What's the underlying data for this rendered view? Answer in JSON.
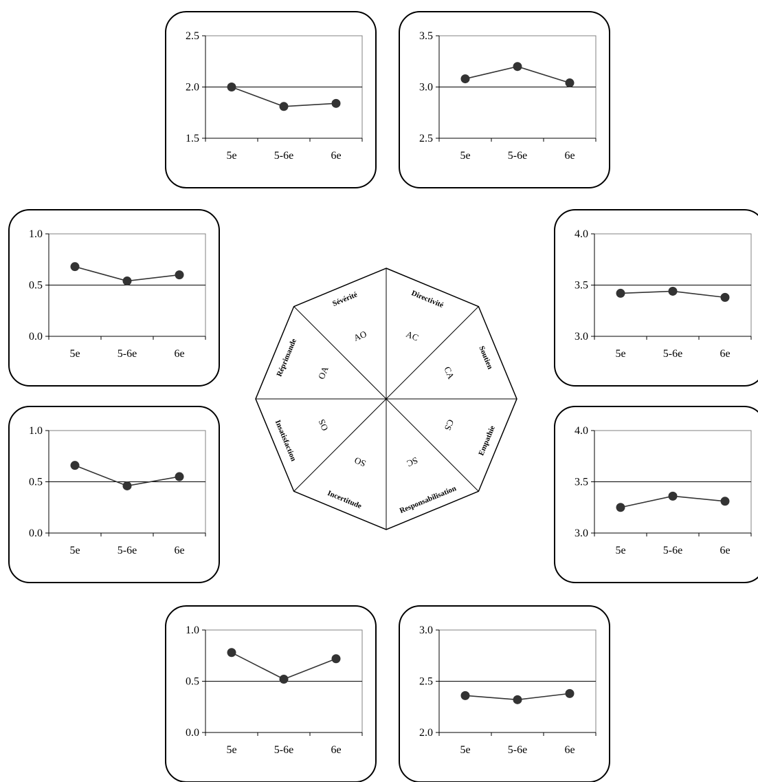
{
  "chart_data": [
    {
      "id": "severite",
      "type": "line",
      "categories": [
        "5e",
        "5-6e",
        "6e"
      ],
      "values": [
        2.0,
        1.81,
        1.84
      ],
      "ylim": [
        1.5,
        2.5
      ],
      "yticks": [
        "1.5",
        "2.0",
        "2.5"
      ],
      "yvals": [
        1.5,
        2.0,
        2.5
      ]
    },
    {
      "id": "directivite",
      "type": "line",
      "categories": [
        "5e",
        "5-6e",
        "6e"
      ],
      "values": [
        3.08,
        3.2,
        3.04
      ],
      "ylim": [
        2.5,
        3.5
      ],
      "yticks": [
        "2.5",
        "3.0",
        "3.5"
      ],
      "yvals": [
        2.5,
        3.0,
        3.5
      ]
    },
    {
      "id": "reprimande",
      "type": "line",
      "categories": [
        "5e",
        "5-6e",
        "6e"
      ],
      "values": [
        0.68,
        0.54,
        0.6
      ],
      "ylim": [
        0.0,
        1.0
      ],
      "yticks": [
        "0.0",
        "0.5",
        "1.0"
      ],
      "yvals": [
        0.0,
        0.5,
        1.0
      ]
    },
    {
      "id": "soutien",
      "type": "line",
      "categories": [
        "5e",
        "5-6e",
        "6e"
      ],
      "values": [
        3.42,
        3.44,
        3.38
      ],
      "ylim": [
        3.0,
        4.0
      ],
      "yticks": [
        "3.0",
        "3.5",
        "4.0"
      ],
      "yvals": [
        3.0,
        3.5,
        4.0
      ]
    },
    {
      "id": "insatisfaction",
      "type": "line",
      "categories": [
        "5e",
        "5-6e",
        "6e"
      ],
      "values": [
        0.66,
        0.46,
        0.55
      ],
      "ylim": [
        0.0,
        1.0
      ],
      "yticks": [
        "0.0",
        "0.5",
        "1.0"
      ],
      "yvals": [
        0.0,
        0.5,
        1.0
      ]
    },
    {
      "id": "empathie",
      "type": "line",
      "categories": [
        "5e",
        "5-6e",
        "6e"
      ],
      "values": [
        3.25,
        3.36,
        3.31
      ],
      "ylim": [
        3.0,
        4.0
      ],
      "yticks": [
        "3.0",
        "3.5",
        "4.0"
      ],
      "yvals": [
        3.0,
        3.5,
        4.0
      ]
    },
    {
      "id": "incertitude",
      "type": "line",
      "categories": [
        "5e",
        "5-6e",
        "6e"
      ],
      "values": [
        0.78,
        0.52,
        0.72
      ],
      "ylim": [
        0.0,
        1.0
      ],
      "yticks": [
        "0.0",
        "0.5",
        "1.0"
      ],
      "yvals": [
        0.0,
        0.5,
        1.0
      ]
    },
    {
      "id": "responsabilisation",
      "type": "line",
      "categories": [
        "5e",
        "5-6e",
        "6e"
      ],
      "values": [
        2.36,
        2.32,
        2.38
      ],
      "ylim": [
        2.0,
        3.0
      ],
      "yticks": [
        "2.0",
        "2.5",
        "3.0"
      ],
      "yvals": [
        2.0,
        2.5,
        3.0
      ]
    }
  ],
  "octagon": {
    "sectors": [
      {
        "dimension": "Sévérité",
        "code": "AO"
      },
      {
        "dimension": "Directivité",
        "code": "AC"
      },
      {
        "dimension": "Soutien",
        "code": "CA"
      },
      {
        "dimension": "Empathie",
        "code": "CS"
      },
      {
        "dimension": "Responsabilisation",
        "code": "SC"
      },
      {
        "dimension": "Incertitude",
        "code": "SO"
      },
      {
        "dimension": "Insatisfaction",
        "code": "OS"
      },
      {
        "dimension": "Réprimande",
        "code": "OA"
      }
    ]
  }
}
